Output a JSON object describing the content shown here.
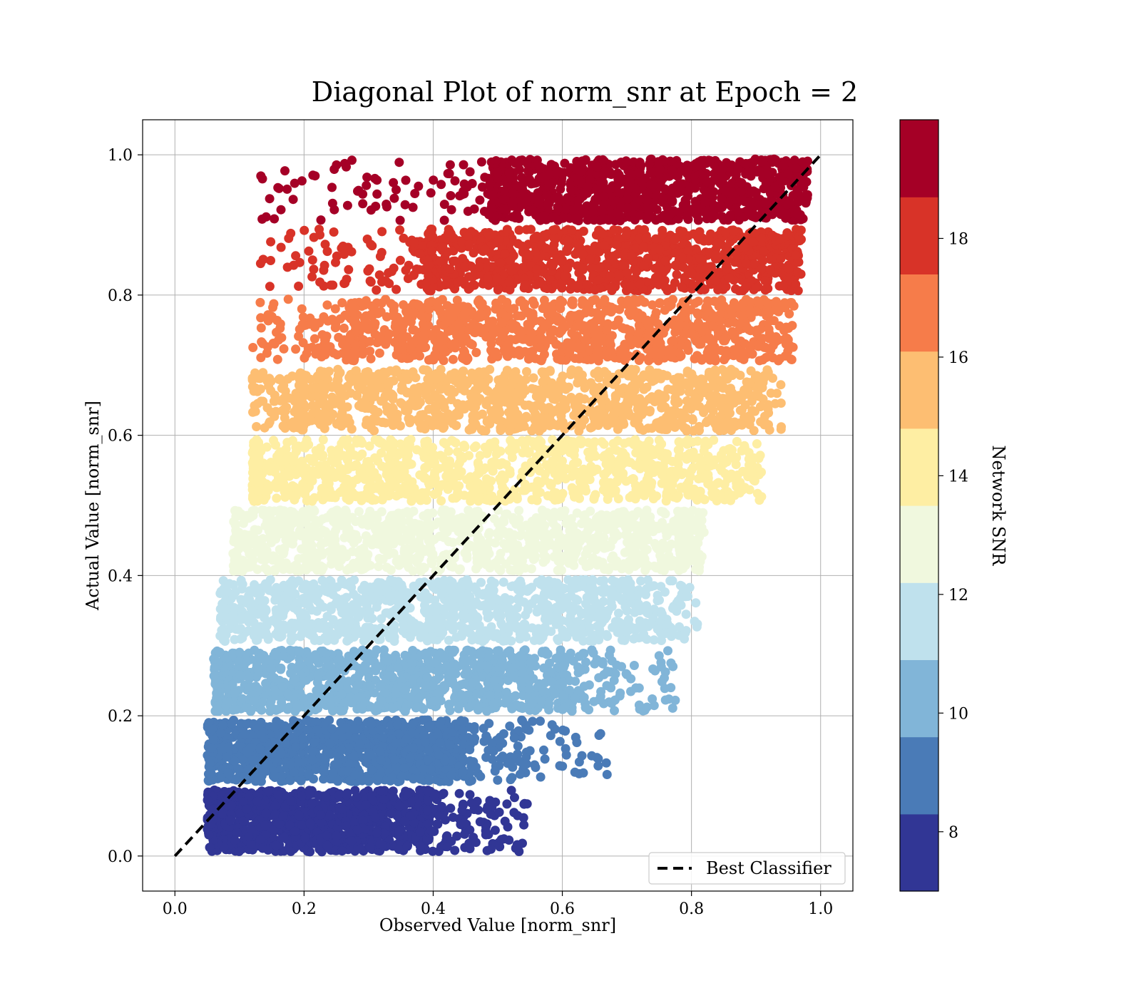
{
  "chart_data": {
    "type": "scatter",
    "title": "Diagonal Plot of norm_snr at Epoch = 2",
    "xlabel": "Observed Value [norm_snr]",
    "ylabel": "Actual Value [norm_snr]",
    "xlim": [
      -0.05,
      1.05
    ],
    "ylim": [
      -0.05,
      1.05
    ],
    "xticks": [
      "0.0",
      "0.2",
      "0.4",
      "0.6",
      "0.8",
      "1.0"
    ],
    "yticks": [
      "0.0",
      "0.2",
      "0.4",
      "0.6",
      "0.8",
      "1.0"
    ],
    "grid": true,
    "reference_line": {
      "name": "Best Classifier",
      "style": "dashed",
      "color": "#000000",
      "x": [
        0.0,
        1.0
      ],
      "y": [
        0.0,
        1.0
      ]
    },
    "legend": {
      "placement": "lower-right",
      "entries": [
        "Best Classifier"
      ]
    },
    "bands": [
      {
        "actual_range": [
          0.0,
          0.1
        ],
        "observed_dense_range": [
          0.06,
          0.39
        ],
        "observed_spread_max": 0.55,
        "color": "#313695"
      },
      {
        "actual_range": [
          0.1,
          0.2
        ],
        "observed_dense_range": [
          0.06,
          0.44
        ],
        "observed_spread_max": 0.67,
        "color": "#4a7bb7"
      },
      {
        "actual_range": [
          0.2,
          0.3
        ],
        "observed_dense_range": [
          0.07,
          0.6
        ],
        "observed_spread_max": 0.78,
        "color": "#81b5d8"
      },
      {
        "actual_range": [
          0.3,
          0.4
        ],
        "observed_dense_range": [
          0.08,
          0.7
        ],
        "observed_spread_max": 0.81,
        "color": "#bfe1ed"
      },
      {
        "actual_range": [
          0.4,
          0.5
        ],
        "observed_dense_range": [
          0.1,
          0.78
        ],
        "observed_spread_max": 0.82,
        "color": "#f0f8de"
      },
      {
        "actual_range": [
          0.5,
          0.6
        ],
        "observed_dense_range": [
          0.13,
          0.88
        ],
        "observed_spread_max": 0.9,
        "color": "#feeea3"
      },
      {
        "actual_range": [
          0.6,
          0.7
        ],
        "observed_dense_range": [
          0.2,
          0.91
        ],
        "observed_spread_max": 0.93,
        "color": "#fdbe72"
      },
      {
        "actual_range": [
          0.7,
          0.8
        ],
        "observed_dense_range": [
          0.28,
          0.94
        ],
        "observed_spread_max": 0.95,
        "color": "#f67c4a"
      },
      {
        "actual_range": [
          0.8,
          0.9
        ],
        "observed_dense_range": [
          0.4,
          0.96
        ],
        "observed_spread_max": 0.96,
        "color": "#d83328"
      },
      {
        "actual_range": [
          0.9,
          1.0
        ],
        "observed_dense_range": [
          0.5,
          0.97
        ],
        "observed_spread_max": 0.97,
        "color": "#a50026"
      }
    ],
    "colorbar": {
      "label": "Network SNR",
      "range": [
        7,
        20
      ],
      "ticks": [
        "8",
        "10",
        "12",
        "14",
        "16",
        "18"
      ],
      "tick_values": [
        8,
        10,
        12,
        14,
        16,
        18
      ],
      "colors": [
        "#313695",
        "#4a7bb7",
        "#81b5d8",
        "#bfe1ed",
        "#f0f8de",
        "#feeea3",
        "#fdbe72",
        "#f67c4a",
        "#d83328",
        "#a50026"
      ]
    }
  }
}
